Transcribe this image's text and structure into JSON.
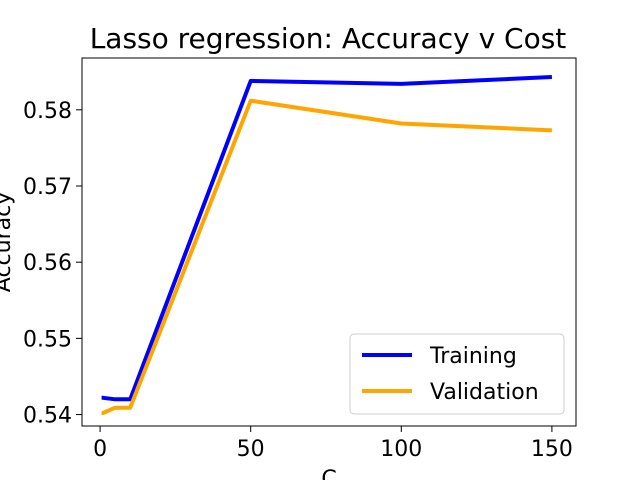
{
  "chart_data": {
    "type": "line",
    "title": "Lasso regression: Accuracy v Cost",
    "xlabel": "C",
    "ylabel": "Accuracy",
    "x": [
      0.5,
      1,
      5,
      10,
      50,
      100,
      150
    ],
    "xlim": [
      -6,
      158
    ],
    "ylim": [
      0.5385,
      0.5868
    ],
    "xticks": [
      0,
      50,
      100,
      150
    ],
    "yticks": [
      0.54,
      0.55,
      0.56,
      0.57,
      0.58
    ],
    "ytick_labels": [
      "0.54",
      "0.55",
      "0.56",
      "0.57",
      "0.58"
    ],
    "legend_position": "lower-right",
    "series": [
      {
        "name": "Training",
        "color": "#0000ff",
        "values": [
          0.5422,
          0.5422,
          0.542,
          0.542,
          0.5838,
          0.5834,
          0.5843
        ]
      },
      {
        "name": "Validation",
        "color": "#ffa500",
        "values": [
          0.5402,
          0.5402,
          0.5409,
          0.5409,
          0.5812,
          0.5782,
          0.5773
        ]
      }
    ]
  }
}
